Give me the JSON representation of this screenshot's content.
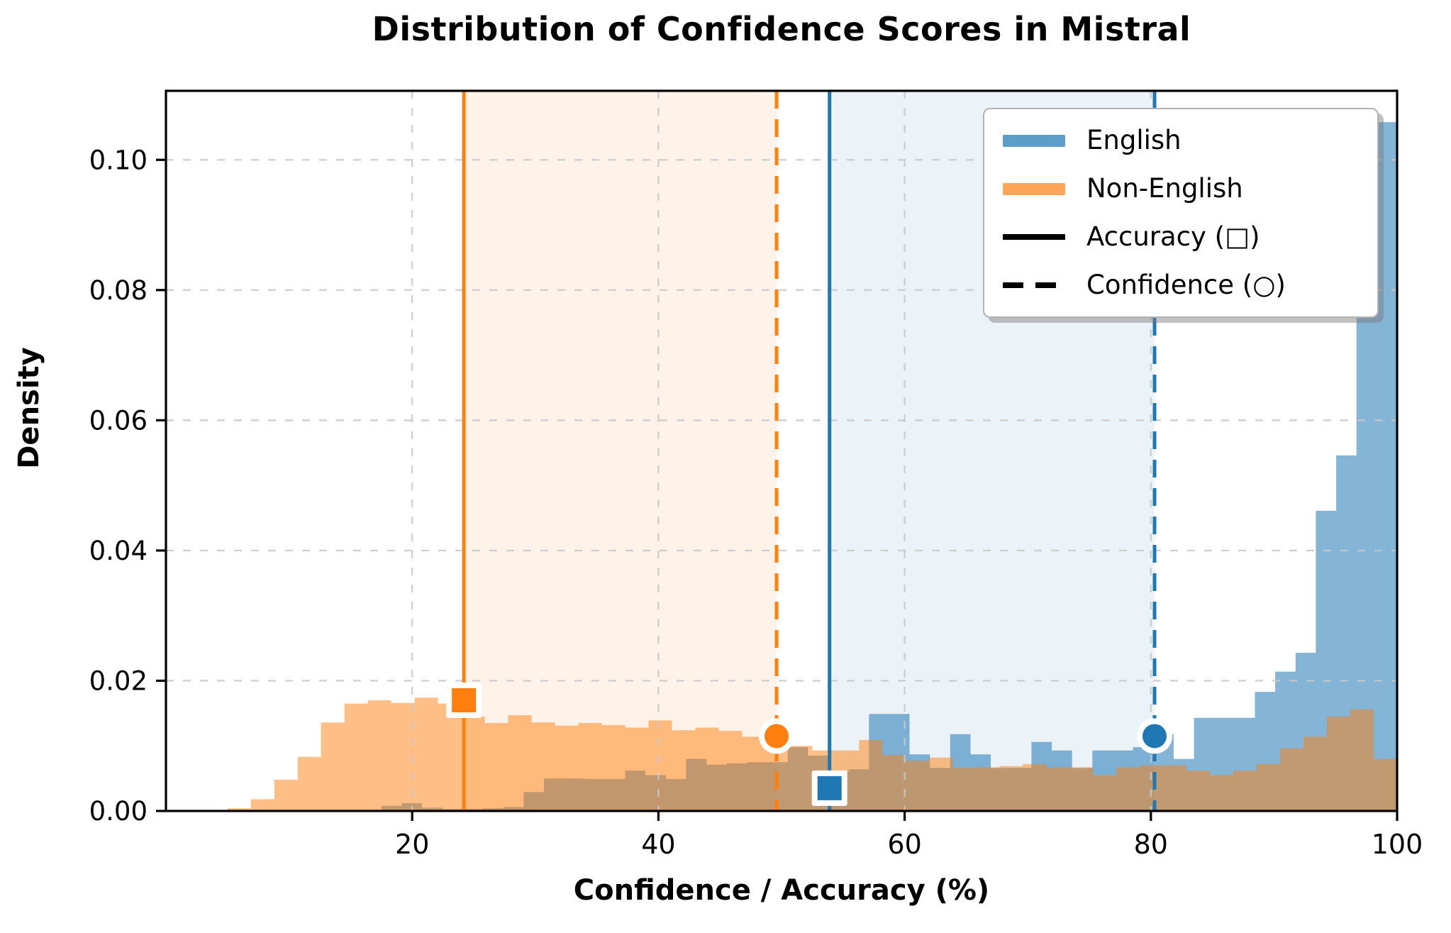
{
  "chart_title": "Distribution of Confidence Scores in Mistral",
  "axes": {
    "x": {
      "label": "Confidence / Accuracy (%)",
      "min": 0,
      "max": 100,
      "ticks": [
        20,
        40,
        60,
        80,
        100
      ],
      "tick_labels": [
        "20",
        "40",
        "60",
        "80",
        "100"
      ]
    },
    "y": {
      "label": "Density",
      "min": 0,
      "max": 0.1106,
      "ticks": [
        0,
        0.02,
        0.04,
        0.06,
        0.08,
        0.1
      ],
      "tick_labels": [
        "0.00",
        "0.02",
        "0.04",
        "0.06",
        "0.08",
        "0.10"
      ]
    },
    "grid": "dashed-both-axes"
  },
  "legend": {
    "items": [
      {
        "label": "English",
        "swatch": "english-patch",
        "color": "#1f77b4"
      },
      {
        "label": "Non-English",
        "swatch": "non-english-patch",
        "color": "#ff7f0e"
      },
      {
        "label": "Accuracy (□)",
        "swatch": "solid-line",
        "color": "#000000"
      },
      {
        "label": "Confidence (○)",
        "swatch": "dashed-line",
        "color": "#000000"
      }
    ]
  },
  "chart_data": {
    "type": "histogram",
    "title": "Distribution of Confidence Scores in Mistral",
    "xlabel": "Confidence / Accuracy (%)",
    "ylabel": "Density",
    "xlim": [
      0,
      100
    ],
    "ylim": [
      0,
      0.1106
    ],
    "legend_position": "upper right",
    "series": [
      {
        "name": "English",
        "color": "#1f77b4",
        "fill_opacity": 0.55,
        "bin_start": 17.5,
        "bin_width": 1.65,
        "densities": [
          0.0008,
          0.0012,
          0.0005,
          0.0003,
          0.0003,
          0.0004,
          0.0006,
          0.0029,
          0.005,
          0.005,
          0.0049,
          0.0049,
          0.0062,
          0.0055,
          0.0049,
          0.008,
          0.0071,
          0.0073,
          0.0075,
          0.0075,
          0.0098,
          0.0085,
          0.006,
          0.0064,
          0.0149,
          0.0149,
          0.0087,
          0.0066,
          0.0118,
          0.0087,
          0.0066,
          0.0066,
          0.0106,
          0.0093,
          0.0066,
          0.0093,
          0.0093,
          0.0098,
          0.0118,
          0.008,
          0.0143,
          0.0143,
          0.0143,
          0.0183,
          0.0214,
          0.0243,
          0.0461,
          0.0546,
          0.0823,
          0.1058
        ]
      },
      {
        "name": "Non-English",
        "color": "#ff7f0e",
        "fill_opacity": 0.5,
        "bin_start": 5.0,
        "bin_width": 1.9,
        "densities": [
          0.0004,
          0.0018,
          0.0048,
          0.0083,
          0.0136,
          0.0165,
          0.017,
          0.0166,
          0.0174,
          0.0165,
          0.0145,
          0.0135,
          0.0147,
          0.0136,
          0.0131,
          0.0135,
          0.0132,
          0.0128,
          0.0139,
          0.0124,
          0.0128,
          0.0123,
          0.0114,
          0.0114,
          0.01,
          0.0093,
          0.0093,
          0.0109,
          0.0086,
          0.0077,
          0.0082,
          0.0066,
          0.0067,
          0.0069,
          0.0072,
          0.0067,
          0.0067,
          0.0055,
          0.0067,
          0.007,
          0.007,
          0.0062,
          0.0055,
          0.0062,
          0.0072,
          0.0096,
          0.0114,
          0.0145,
          0.0156,
          0.008
        ]
      }
    ],
    "vlines": [
      {
        "name": "non-english-accuracy",
        "x": 24.2,
        "style": "solid",
        "color": "#ff7f0e",
        "marker": "square",
        "marker_y": 0.017
      },
      {
        "name": "non-english-confidence",
        "x": 49.6,
        "style": "dashed",
        "color": "#ff7f0e",
        "marker": "circle",
        "marker_y": 0.0115
      },
      {
        "name": "english-accuracy",
        "x": 53.9,
        "style": "solid",
        "color": "#1f77b4",
        "marker": "square",
        "marker_y": 0.0035
      },
      {
        "name": "english-confidence",
        "x": 80.3,
        "style": "dashed",
        "color": "#1f77b4",
        "marker": "circle",
        "marker_y": 0.0115
      }
    ],
    "spans": [
      {
        "name": "non-english-range",
        "x0": 24.2,
        "x1": 49.6,
        "color": "#ff7f0e",
        "opacity": 0.09
      },
      {
        "name": "english-range",
        "x0": 53.9,
        "x1": 80.3,
        "color": "#1f77b4",
        "opacity": 0.09
      }
    ]
  }
}
